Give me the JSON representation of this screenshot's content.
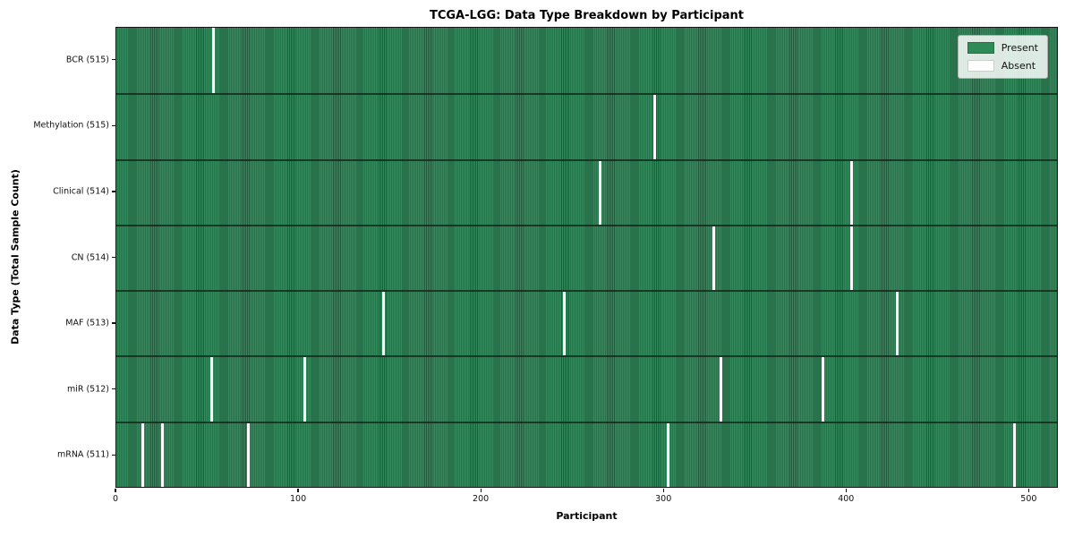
{
  "chart_data": {
    "type": "heatmap",
    "title": "TCGA-LGG: Data Type Breakdown by Participant",
    "xlabel": "Participant",
    "ylabel": "Data Type (Total Sample Count)",
    "xlim": [
      0,
      516
    ],
    "x_ticks": [
      0,
      100,
      200,
      300,
      400,
      500
    ],
    "grid": false,
    "legend_position": "upper right",
    "colors": {
      "present": "#2e8b57",
      "present_stripe_edge": "#1e5c3b",
      "absent": "#ffffff"
    },
    "legend": [
      {
        "label": "Present",
        "color": "#2e8b57"
      },
      {
        "label": "Absent",
        "color": "#ffffff"
      }
    ],
    "rows": [
      {
        "label": "BCR (515)",
        "name": "BCR",
        "present_count": 515,
        "absent_x": [
          53
        ]
      },
      {
        "label": "Methylation (515)",
        "name": "Methylation",
        "present_count": 515,
        "absent_x": [
          295
        ]
      },
      {
        "label": "Clinical (514)",
        "name": "Clinical",
        "present_count": 514,
        "absent_x": [
          265,
          403
        ]
      },
      {
        "label": "CN (514)",
        "name": "CN",
        "present_count": 514,
        "absent_x": [
          327,
          403
        ]
      },
      {
        "label": "MAF (513)",
        "name": "MAF",
        "present_count": 513,
        "absent_x": [
          146,
          245,
          428
        ]
      },
      {
        "label": "miR (512)",
        "name": "miR",
        "present_count": 512,
        "absent_x": [
          52,
          103,
          331,
          387
        ]
      },
      {
        "label": "mRNA (511)",
        "name": "mRNA",
        "present_count": 511,
        "absent_x": [
          14,
          25,
          72,
          302,
          492
        ]
      }
    ]
  }
}
